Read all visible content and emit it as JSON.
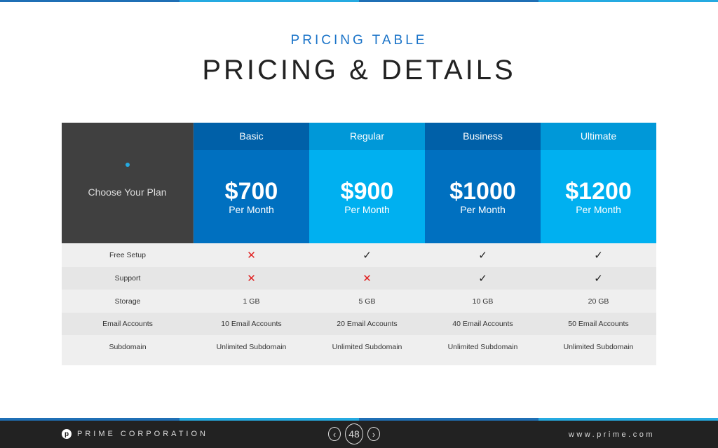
{
  "header": {
    "subtitle": "PRICING TABLE",
    "title": "PRICING & DETAILS"
  },
  "table": {
    "corner_label": "Choose Your Plan",
    "plans": [
      {
        "name": "Basic",
        "price": "$700",
        "period": "Per Month",
        "color_head": "#0060a8",
        "color_body": "#0070c0"
      },
      {
        "name": "Regular",
        "price": "$900",
        "period": "Per Month",
        "color_head": "#0098d8",
        "color_body": "#00b0f0"
      },
      {
        "name": "Business",
        "price": "$1000",
        "period": "Per Month",
        "color_head": "#0060a8",
        "color_body": "#0070c0"
      },
      {
        "name": "Ultimate",
        "price": "$1200",
        "period": "Per Month",
        "color_head": "#0098d8",
        "color_body": "#00b0f0"
      }
    ],
    "rows": [
      {
        "label": "Free Setup",
        "values": [
          "✕",
          "✓",
          "✓",
          "✓"
        ]
      },
      {
        "label": "Support",
        "values": [
          "✕",
          "✕",
          "✓",
          "✓"
        ]
      },
      {
        "label": "Storage",
        "values": [
          "1 GB",
          "5 GB",
          "10 GB",
          "20 GB"
        ]
      },
      {
        "label": "Email Accounts",
        "values": [
          "10 Email Accounts",
          "20 Email Accounts",
          "40 Email Accounts",
          "50 Email Accounts"
        ]
      },
      {
        "label": "Subdomain",
        "values": [
          "Unlimited Subdomain",
          "Unlimited Subdomain",
          "Unlimited Subdomain",
          "Unlimited Subdomain"
        ]
      }
    ]
  },
  "footer": {
    "logo_letter": "p",
    "brand": "PRIME CORPORATION",
    "page": "48",
    "prev": "‹",
    "next": "›",
    "url": "www.prime.com"
  }
}
